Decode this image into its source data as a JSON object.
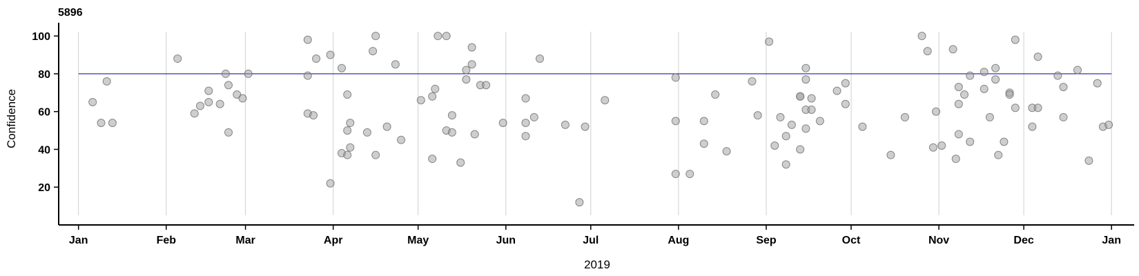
{
  "corner_label": "5896",
  "chart_data": {
    "type": "scatter",
    "xlabel": "2019",
    "ylabel": "Confidence",
    "ylim": [
      0,
      107
    ],
    "xlim": [
      "2018-12-25",
      "2020-01-09"
    ],
    "y_ticks": [
      20,
      40,
      60,
      80,
      100
    ],
    "x_ticks": [
      {
        "date": "2019-01-01",
        "label": "Jan"
      },
      {
        "date": "2019-02-01",
        "label": "Feb"
      },
      {
        "date": "2019-03-01",
        "label": "Mar"
      },
      {
        "date": "2019-04-01",
        "label": "Apr"
      },
      {
        "date": "2019-05-01",
        "label": "May"
      },
      {
        "date": "2019-06-01",
        "label": "Jun"
      },
      {
        "date": "2019-07-01",
        "label": "Jul"
      },
      {
        "date": "2019-08-01",
        "label": "Aug"
      },
      {
        "date": "2019-09-01",
        "label": "Sep"
      },
      {
        "date": "2019-10-01",
        "label": "Oct"
      },
      {
        "date": "2019-11-01",
        "label": "Nov"
      },
      {
        "date": "2019-12-01",
        "label": "Dec"
      },
      {
        "date": "2020-01-01",
        "label": "Jan"
      }
    ],
    "grid": "vertical gridlines at month starts",
    "threshold": {
      "y": 80,
      "color": "#1a1aa6"
    },
    "point_color": "#9e9e9e",
    "points": [
      {
        "x": "2019-01-06",
        "y": 65
      },
      {
        "x": "2019-01-09",
        "y": 54
      },
      {
        "x": "2019-01-11",
        "y": 76
      },
      {
        "x": "2019-01-13",
        "y": 54
      },
      {
        "x": "2019-02-05",
        "y": 88
      },
      {
        "x": "2019-02-11",
        "y": 59
      },
      {
        "x": "2019-02-13",
        "y": 63
      },
      {
        "x": "2019-02-16",
        "y": 65
      },
      {
        "x": "2019-02-16",
        "y": 71
      },
      {
        "x": "2019-02-20",
        "y": 64
      },
      {
        "x": "2019-02-22",
        "y": 80
      },
      {
        "x": "2019-02-23",
        "y": 74
      },
      {
        "x": "2019-02-23",
        "y": 49
      },
      {
        "x": "2019-02-26",
        "y": 69
      },
      {
        "x": "2019-02-28",
        "y": 67
      },
      {
        "x": "2019-03-02",
        "y": 80
      },
      {
        "x": "2019-03-23",
        "y": 98
      },
      {
        "x": "2019-03-23",
        "y": 79
      },
      {
        "x": "2019-03-23",
        "y": 59
      },
      {
        "x": "2019-03-25",
        "y": 58
      },
      {
        "x": "2019-03-26",
        "y": 88
      },
      {
        "x": "2019-03-31",
        "y": 90
      },
      {
        "x": "2019-03-31",
        "y": 22
      },
      {
        "x": "2019-04-04",
        "y": 83
      },
      {
        "x": "2019-04-04",
        "y": 38
      },
      {
        "x": "2019-04-06",
        "y": 69
      },
      {
        "x": "2019-04-06",
        "y": 50
      },
      {
        "x": "2019-04-06",
        "y": 37
      },
      {
        "x": "2019-04-07",
        "y": 54
      },
      {
        "x": "2019-04-07",
        "y": 41
      },
      {
        "x": "2019-04-13",
        "y": 49
      },
      {
        "x": "2019-04-15",
        "y": 92
      },
      {
        "x": "2019-04-16",
        "y": 100
      },
      {
        "x": "2019-04-16",
        "y": 37
      },
      {
        "x": "2019-04-20",
        "y": 52
      },
      {
        "x": "2019-04-23",
        "y": 85
      },
      {
        "x": "2019-04-25",
        "y": 45
      },
      {
        "x": "2019-05-02",
        "y": 66
      },
      {
        "x": "2019-05-06",
        "y": 68
      },
      {
        "x": "2019-05-06",
        "y": 35
      },
      {
        "x": "2019-05-07",
        "y": 72
      },
      {
        "x": "2019-05-08",
        "y": 100
      },
      {
        "x": "2019-05-11",
        "y": 100
      },
      {
        "x": "2019-05-11",
        "y": 50
      },
      {
        "x": "2019-05-13",
        "y": 58
      },
      {
        "x": "2019-05-13",
        "y": 49
      },
      {
        "x": "2019-05-16",
        "y": 33
      },
      {
        "x": "2019-05-18",
        "y": 82
      },
      {
        "x": "2019-05-18",
        "y": 77
      },
      {
        "x": "2019-05-20",
        "y": 94
      },
      {
        "x": "2019-05-20",
        "y": 85
      },
      {
        "x": "2019-05-21",
        "y": 48
      },
      {
        "x": "2019-05-23",
        "y": 74
      },
      {
        "x": "2019-05-25",
        "y": 74
      },
      {
        "x": "2019-05-31",
        "y": 54
      },
      {
        "x": "2019-06-08",
        "y": 67
      },
      {
        "x": "2019-06-08",
        "y": 54
      },
      {
        "x": "2019-06-08",
        "y": 47
      },
      {
        "x": "2019-06-11",
        "y": 57
      },
      {
        "x": "2019-06-13",
        "y": 88
      },
      {
        "x": "2019-06-22",
        "y": 53
      },
      {
        "x": "2019-06-27",
        "y": 12
      },
      {
        "x": "2019-06-29",
        "y": 52
      },
      {
        "x": "2019-07-06",
        "y": 66
      },
      {
        "x": "2019-07-31",
        "y": 78
      },
      {
        "x": "2019-07-31",
        "y": 55
      },
      {
        "x": "2019-07-31",
        "y": 27
      },
      {
        "x": "2019-08-05",
        "y": 27
      },
      {
        "x": "2019-08-10",
        "y": 55
      },
      {
        "x": "2019-08-10",
        "y": 43
      },
      {
        "x": "2019-08-14",
        "y": 69
      },
      {
        "x": "2019-08-18",
        "y": 39
      },
      {
        "x": "2019-08-27",
        "y": 76
      },
      {
        "x": "2019-08-29",
        "y": 58
      },
      {
        "x": "2019-09-02",
        "y": 97
      },
      {
        "x": "2019-09-04",
        "y": 42
      },
      {
        "x": "2019-09-06",
        "y": 57
      },
      {
        "x": "2019-09-08",
        "y": 47
      },
      {
        "x": "2019-09-08",
        "y": 32
      },
      {
        "x": "2019-09-10",
        "y": 53
      },
      {
        "x": "2019-09-13",
        "y": 68
      },
      {
        "x": "2019-09-13",
        "y": 68
      },
      {
        "x": "2019-09-13",
        "y": 40
      },
      {
        "x": "2019-09-15",
        "y": 83
      },
      {
        "x": "2019-09-15",
        "y": 77
      },
      {
        "x": "2019-09-15",
        "y": 61
      },
      {
        "x": "2019-09-15",
        "y": 51
      },
      {
        "x": "2019-09-17",
        "y": 67
      },
      {
        "x": "2019-09-17",
        "y": 61
      },
      {
        "x": "2019-09-20",
        "y": 55
      },
      {
        "x": "2019-09-26",
        "y": 71
      },
      {
        "x": "2019-09-29",
        "y": 75
      },
      {
        "x": "2019-09-29",
        "y": 64
      },
      {
        "x": "2019-10-05",
        "y": 52
      },
      {
        "x": "2019-10-15",
        "y": 37
      },
      {
        "x": "2019-10-20",
        "y": 57
      },
      {
        "x": "2019-10-26",
        "y": 100
      },
      {
        "x": "2019-10-28",
        "y": 92
      },
      {
        "x": "2019-10-30",
        "y": 41
      },
      {
        "x": "2019-10-31",
        "y": 60
      },
      {
        "x": "2019-11-02",
        "y": 42
      },
      {
        "x": "2019-11-06",
        "y": 93
      },
      {
        "x": "2019-11-07",
        "y": 35
      },
      {
        "x": "2019-11-08",
        "y": 73
      },
      {
        "x": "2019-11-08",
        "y": 64
      },
      {
        "x": "2019-11-08",
        "y": 48
      },
      {
        "x": "2019-11-10",
        "y": 69
      },
      {
        "x": "2019-11-12",
        "y": 79
      },
      {
        "x": "2019-11-12",
        "y": 44
      },
      {
        "x": "2019-11-17",
        "y": 81
      },
      {
        "x": "2019-11-17",
        "y": 72
      },
      {
        "x": "2019-11-19",
        "y": 57
      },
      {
        "x": "2019-11-21",
        "y": 83
      },
      {
        "x": "2019-11-21",
        "y": 77
      },
      {
        "x": "2019-11-22",
        "y": 37
      },
      {
        "x": "2019-11-24",
        "y": 44
      },
      {
        "x": "2019-11-26",
        "y": 70
      },
      {
        "x": "2019-11-26",
        "y": 69
      },
      {
        "x": "2019-11-28",
        "y": 98
      },
      {
        "x": "2019-11-28",
        "y": 62
      },
      {
        "x": "2019-12-04",
        "y": 62
      },
      {
        "x": "2019-12-04",
        "y": 52
      },
      {
        "x": "2019-12-06",
        "y": 89
      },
      {
        "x": "2019-12-06",
        "y": 62
      },
      {
        "x": "2019-12-13",
        "y": 79
      },
      {
        "x": "2019-12-15",
        "y": 73
      },
      {
        "x": "2019-12-15",
        "y": 57
      },
      {
        "x": "2019-12-20",
        "y": 82
      },
      {
        "x": "2019-12-24",
        "y": 34
      },
      {
        "x": "2019-12-27",
        "y": 75
      },
      {
        "x": "2019-12-29",
        "y": 52
      },
      {
        "x": "2019-12-31",
        "y": 53
      }
    ]
  }
}
